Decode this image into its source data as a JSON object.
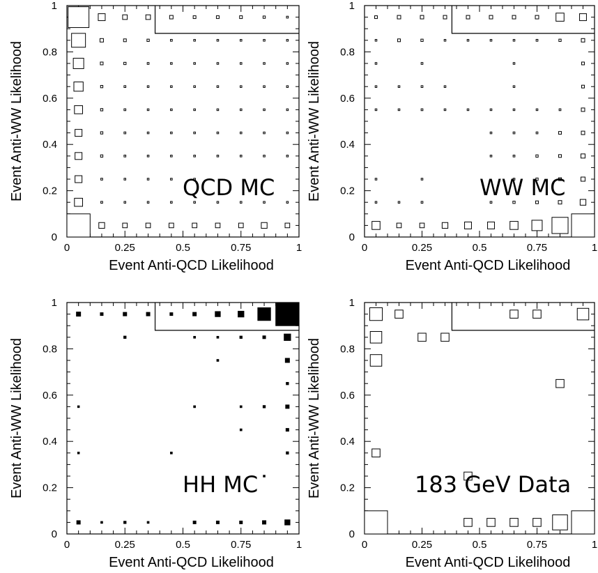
{
  "chart_data": [
    {
      "type": "box",
      "annotation": "QCD MC",
      "xlabel": "Event Anti-QCD Likelihood",
      "ylabel": "Event Anti-WW Likelihood",
      "xlim": [
        0,
        1
      ],
      "ylim": [
        0,
        1
      ],
      "xticks": [
        "0",
        "0.25",
        "0.5",
        "0.75",
        "1"
      ],
      "yticks": [
        "0",
        "0.2",
        "0.4",
        "0.6",
        "0.8",
        "1"
      ],
      "fill": "open",
      "cut_lines": {
        "x": 0.38,
        "y": 0.88
      },
      "cells": [
        [
          0.05,
          0.95,
          0.9
        ],
        [
          0.15,
          0.95,
          0.3
        ],
        [
          0.25,
          0.95,
          0.2
        ],
        [
          0.35,
          0.95,
          0.2
        ],
        [
          0.45,
          0.95,
          0.15
        ],
        [
          0.55,
          0.95,
          0.12
        ],
        [
          0.65,
          0.95,
          0.12
        ],
        [
          0.75,
          0.95,
          0.12
        ],
        [
          0.85,
          0.95,
          0.1
        ],
        [
          0.95,
          0.95,
          0.08
        ],
        [
          0.05,
          0.85,
          0.6
        ],
        [
          0.15,
          0.85,
          0.15
        ],
        [
          0.25,
          0.85,
          0.12
        ],
        [
          0.35,
          0.85,
          0.1
        ],
        [
          0.45,
          0.85,
          0.08
        ],
        [
          0.55,
          0.85,
          0.06
        ],
        [
          0.65,
          0.85,
          0.06
        ],
        [
          0.75,
          0.85,
          0.06
        ],
        [
          0.85,
          0.85,
          0.06
        ],
        [
          0.95,
          0.85,
          0.06
        ],
        [
          0.05,
          0.75,
          0.45
        ],
        [
          0.15,
          0.75,
          0.12
        ],
        [
          0.25,
          0.75,
          0.1
        ],
        [
          0.35,
          0.75,
          0.08
        ],
        [
          0.45,
          0.75,
          0.06
        ],
        [
          0.55,
          0.75,
          0.05
        ],
        [
          0.65,
          0.75,
          0.05
        ],
        [
          0.75,
          0.75,
          0.05
        ],
        [
          0.85,
          0.75,
          0.05
        ],
        [
          0.95,
          0.75,
          0.05
        ],
        [
          0.05,
          0.65,
          0.4
        ],
        [
          0.15,
          0.65,
          0.1
        ],
        [
          0.25,
          0.65,
          0.08
        ],
        [
          0.35,
          0.65,
          0.06
        ],
        [
          0.45,
          0.65,
          0.05
        ],
        [
          0.55,
          0.65,
          0.05
        ],
        [
          0.65,
          0.65,
          0.05
        ],
        [
          0.75,
          0.65,
          0.05
        ],
        [
          0.85,
          0.65,
          0.05
        ],
        [
          0.95,
          0.65,
          0.05
        ],
        [
          0.05,
          0.55,
          0.35
        ],
        [
          0.15,
          0.55,
          0.1
        ],
        [
          0.25,
          0.55,
          0.08
        ],
        [
          0.35,
          0.55,
          0.06
        ],
        [
          0.45,
          0.55,
          0.05
        ],
        [
          0.55,
          0.55,
          0.05
        ],
        [
          0.65,
          0.55,
          0.05
        ],
        [
          0.75,
          0.55,
          0.05
        ],
        [
          0.85,
          0.55,
          0.05
        ],
        [
          0.95,
          0.55,
          0.05
        ],
        [
          0.05,
          0.45,
          0.3
        ],
        [
          0.15,
          0.45,
          0.1
        ],
        [
          0.25,
          0.45,
          0.08
        ],
        [
          0.35,
          0.45,
          0.06
        ],
        [
          0.45,
          0.45,
          0.05
        ],
        [
          0.55,
          0.45,
          0.05
        ],
        [
          0.65,
          0.45,
          0.05
        ],
        [
          0.75,
          0.45,
          0.05
        ],
        [
          0.85,
          0.45,
          0.05
        ],
        [
          0.95,
          0.45,
          0.05
        ],
        [
          0.05,
          0.35,
          0.3
        ],
        [
          0.15,
          0.35,
          0.1
        ],
        [
          0.25,
          0.35,
          0.08
        ],
        [
          0.35,
          0.35,
          0.06
        ],
        [
          0.45,
          0.35,
          0.05
        ],
        [
          0.55,
          0.35,
          0.05
        ],
        [
          0.65,
          0.35,
          0.05
        ],
        [
          0.75,
          0.35,
          0.05
        ],
        [
          0.85,
          0.35,
          0.05
        ],
        [
          0.95,
          0.35,
          0.05
        ],
        [
          0.05,
          0.25,
          0.3
        ],
        [
          0.15,
          0.25,
          0.08
        ],
        [
          0.25,
          0.25,
          0.06
        ],
        [
          0.35,
          0.25,
          0.05
        ],
        [
          0.45,
          0.25,
          0.05
        ],
        [
          0.55,
          0.25,
          0.05
        ],
        [
          0.05,
          0.15,
          0.35
        ],
        [
          0.15,
          0.15,
          0.08
        ],
        [
          0.25,
          0.15,
          0.06
        ],
        [
          0.35,
          0.15,
          0.05
        ],
        [
          0.45,
          0.15,
          0.05
        ],
        [
          0.55,
          0.15,
          0.05
        ],
        [
          0.65,
          0.15,
          0.05
        ],
        [
          0.75,
          0.15,
          0.05
        ],
        [
          0.85,
          0.15,
          0.05
        ],
        [
          0.95,
          0.15,
          0.05
        ],
        [
          0.05,
          0.05,
          1.0
        ],
        [
          0.15,
          0.05,
          0.25
        ],
        [
          0.25,
          0.05,
          0.2
        ],
        [
          0.35,
          0.05,
          0.2
        ],
        [
          0.45,
          0.05,
          0.2
        ],
        [
          0.55,
          0.05,
          0.2
        ],
        [
          0.65,
          0.05,
          0.2
        ],
        [
          0.75,
          0.05,
          0.2
        ],
        [
          0.85,
          0.05,
          0.25
        ],
        [
          0.95,
          0.05,
          0.2
        ]
      ]
    },
    {
      "type": "box",
      "annotation": "WW MC",
      "xlabel": "Event Anti-QCD Likelihood",
      "ylabel": "Event Anti-WW Likelihood",
      "xlim": [
        0,
        1
      ],
      "ylim": [
        0,
        1
      ],
      "xticks": [
        "0",
        "0.25",
        "0.5",
        "0.75",
        "1"
      ],
      "yticks": [
        "0",
        "0.2",
        "0.4",
        "0.6",
        "0.8",
        "1"
      ],
      "fill": "open",
      "cut_lines": {
        "x": 0.38,
        "y": 0.88
      },
      "cells": [
        [
          0.05,
          0.95,
          0.12
        ],
        [
          0.15,
          0.95,
          0.15
        ],
        [
          0.25,
          0.95,
          0.15
        ],
        [
          0.35,
          0.95,
          0.15
        ],
        [
          0.45,
          0.95,
          0.15
        ],
        [
          0.55,
          0.95,
          0.15
        ],
        [
          0.65,
          0.95,
          0.15
        ],
        [
          0.75,
          0.95,
          0.15
        ],
        [
          0.85,
          0.95,
          0.35
        ],
        [
          0.95,
          0.95,
          0.3
        ],
        [
          0.05,
          0.85,
          0.06
        ],
        [
          0.15,
          0.85,
          0.12
        ],
        [
          0.25,
          0.85,
          0.1
        ],
        [
          0.35,
          0.85,
          0.06
        ],
        [
          0.45,
          0.85,
          0.05
        ],
        [
          0.55,
          0.85,
          0.05
        ],
        [
          0.65,
          0.85,
          0.06
        ],
        [
          0.75,
          0.85,
          0.08
        ],
        [
          0.85,
          0.85,
          0.1
        ],
        [
          0.95,
          0.85,
          0.15
        ],
        [
          0.05,
          0.75,
          0.06
        ],
        [
          0.25,
          0.75,
          0.08
        ],
        [
          0.65,
          0.75,
          0.05
        ],
        [
          0.95,
          0.75,
          0.12
        ],
        [
          0.05,
          0.65,
          0.06
        ],
        [
          0.15,
          0.65,
          0.06
        ],
        [
          0.25,
          0.65,
          0.08
        ],
        [
          0.35,
          0.65,
          0.05
        ],
        [
          0.65,
          0.65,
          0.05
        ],
        [
          0.95,
          0.65,
          0.12
        ],
        [
          0.05,
          0.55,
          0.06
        ],
        [
          0.15,
          0.55,
          0.06
        ],
        [
          0.25,
          0.55,
          0.08
        ],
        [
          0.35,
          0.55,
          0.05
        ],
        [
          0.45,
          0.55,
          0.05
        ],
        [
          0.55,
          0.55,
          0.05
        ],
        [
          0.65,
          0.55,
          0.06
        ],
        [
          0.75,
          0.55,
          0.06
        ],
        [
          0.85,
          0.55,
          0.08
        ],
        [
          0.95,
          0.55,
          0.15
        ],
        [
          0.55,
          0.45,
          0.06
        ],
        [
          0.65,
          0.45,
          0.08
        ],
        [
          0.75,
          0.45,
          0.08
        ],
        [
          0.85,
          0.45,
          0.12
        ],
        [
          0.95,
          0.45,
          0.15
        ],
        [
          0.55,
          0.35,
          0.06
        ],
        [
          0.65,
          0.35,
          0.08
        ],
        [
          0.75,
          0.35,
          0.1
        ],
        [
          0.85,
          0.35,
          0.12
        ],
        [
          0.95,
          0.35,
          0.18
        ],
        [
          0.05,
          0.25,
          0.05
        ],
        [
          0.25,
          0.25,
          0.06
        ],
        [
          0.65,
          0.25,
          0.08
        ],
        [
          0.75,
          0.25,
          0.1
        ],
        [
          0.85,
          0.25,
          0.12
        ],
        [
          0.95,
          0.25,
          0.18
        ],
        [
          0.05,
          0.15,
          0.06
        ],
        [
          0.15,
          0.15,
          0.06
        ],
        [
          0.25,
          0.15,
          0.08
        ],
        [
          0.55,
          0.15,
          0.08
        ],
        [
          0.65,
          0.15,
          0.1
        ],
        [
          0.75,
          0.15,
          0.12
        ],
        [
          0.85,
          0.15,
          0.15
        ],
        [
          0.95,
          0.15,
          0.25
        ],
        [
          0.05,
          0.05,
          0.35
        ],
        [
          0.15,
          0.05,
          0.2
        ],
        [
          0.25,
          0.05,
          0.2
        ],
        [
          0.35,
          0.05,
          0.25
        ],
        [
          0.45,
          0.05,
          0.3
        ],
        [
          0.55,
          0.05,
          0.3
        ],
        [
          0.65,
          0.05,
          0.35
        ],
        [
          0.75,
          0.05,
          0.45
        ],
        [
          0.85,
          0.05,
          0.7
        ],
        [
          0.95,
          0.05,
          1.0
        ]
      ]
    },
    {
      "type": "box",
      "annotation": "HH MC",
      "xlabel": "Event Anti-QCD Likelihood",
      "ylabel": "Event Anti-WW Likelihood",
      "xlim": [
        0,
        1
      ],
      "ylim": [
        0,
        1
      ],
      "xticks": [
        "0",
        "0.25",
        "0.5",
        "0.75",
        "1"
      ],
      "yticks": [
        "0",
        "0.2",
        "0.4",
        "0.6",
        "0.8",
        "1"
      ],
      "fill": "solid",
      "cut_lines": {
        "x": 0.38,
        "y": 0.88
      },
      "cells": [
        [
          0.05,
          0.95,
          0.18
        ],
        [
          0.15,
          0.95,
          0.12
        ],
        [
          0.25,
          0.95,
          0.15
        ],
        [
          0.35,
          0.95,
          0.15
        ],
        [
          0.45,
          0.95,
          0.12
        ],
        [
          0.55,
          0.95,
          0.15
        ],
        [
          0.65,
          0.95,
          0.22
        ],
        [
          0.75,
          0.95,
          0.25
        ],
        [
          0.85,
          0.95,
          0.55
        ],
        [
          0.95,
          0.95,
          1.0
        ],
        [
          0.25,
          0.85,
          0.1
        ],
        [
          0.55,
          0.85,
          0.08
        ],
        [
          0.65,
          0.85,
          0.08
        ],
        [
          0.75,
          0.85,
          0.1
        ],
        [
          0.85,
          0.85,
          0.12
        ],
        [
          0.95,
          0.85,
          0.28
        ],
        [
          0.65,
          0.75,
          0.08
        ],
        [
          0.95,
          0.75,
          0.18
        ],
        [
          0.95,
          0.65,
          0.1
        ],
        [
          0.05,
          0.55,
          0.06
        ],
        [
          0.55,
          0.55,
          0.08
        ],
        [
          0.75,
          0.55,
          0.08
        ],
        [
          0.85,
          0.55,
          0.1
        ],
        [
          0.95,
          0.55,
          0.15
        ],
        [
          0.75,
          0.45,
          0.08
        ],
        [
          0.95,
          0.45,
          0.12
        ],
        [
          0.05,
          0.35,
          0.06
        ],
        [
          0.45,
          0.35,
          0.08
        ],
        [
          0.95,
          0.35,
          0.1
        ],
        [
          0.85,
          0.25,
          0.06
        ],
        [
          0.05,
          0.05,
          0.15
        ],
        [
          0.15,
          0.05,
          0.08
        ],
        [
          0.25,
          0.05,
          0.1
        ],
        [
          0.35,
          0.05,
          0.08
        ],
        [
          0.55,
          0.05,
          0.12
        ],
        [
          0.65,
          0.05,
          0.12
        ],
        [
          0.75,
          0.05,
          0.12
        ],
        [
          0.85,
          0.05,
          0.15
        ],
        [
          0.95,
          0.05,
          0.22
        ]
      ]
    },
    {
      "type": "box",
      "annotation": "183 GeV Data",
      "xlabel": "Event Anti-QCD Likelihood",
      "ylabel": "Event Anti-WW Likelihood",
      "xlim": [
        0,
        1
      ],
      "ylim": [
        0,
        1
      ],
      "xticks": [
        "0",
        "0.25",
        "0.5",
        "0.75",
        "1"
      ],
      "yticks": [
        "0",
        "0.2",
        "0.4",
        "0.6",
        "0.8",
        "1"
      ],
      "fill": "open",
      "cut_lines": {
        "x": 0.38,
        "y": 0.88
      },
      "cells": [
        [
          0.05,
          0.95,
          0.55
        ],
        [
          0.15,
          0.95,
          0.35
        ],
        [
          0.65,
          0.95,
          0.35
        ],
        [
          0.75,
          0.95,
          0.35
        ],
        [
          0.95,
          0.95,
          0.5
        ],
        [
          0.05,
          0.85,
          0.5
        ],
        [
          0.25,
          0.85,
          0.35
        ],
        [
          0.35,
          0.85,
          0.35
        ],
        [
          0.05,
          0.75,
          0.5
        ],
        [
          0.85,
          0.65,
          0.35
        ],
        [
          0.05,
          0.35,
          0.35
        ],
        [
          0.45,
          0.25,
          0.35
        ],
        [
          0.05,
          0.05,
          1.0
        ],
        [
          0.45,
          0.05,
          0.35
        ],
        [
          0.55,
          0.05,
          0.35
        ],
        [
          0.65,
          0.05,
          0.35
        ],
        [
          0.75,
          0.05,
          0.35
        ],
        [
          0.85,
          0.05,
          0.65
        ],
        [
          0.95,
          0.05,
          1.0
        ]
      ]
    }
  ]
}
